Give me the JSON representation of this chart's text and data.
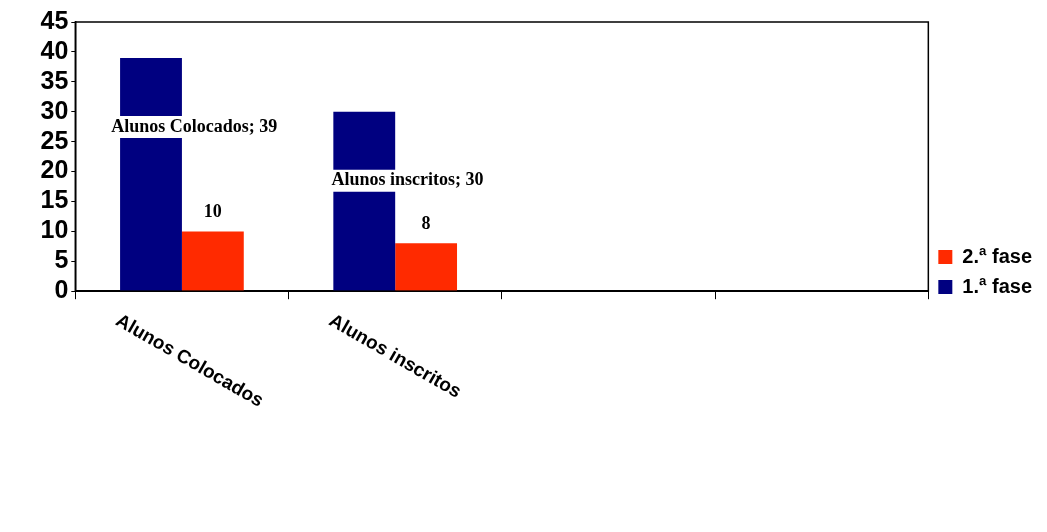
{
  "chart_data": {
    "type": "bar",
    "categories": [
      "Alunos Colocados",
      "Alunos inscritos",
      null,
      null
    ],
    "series": [
      {
        "name": "1.ª fase",
        "color": "#000080",
        "values": [
          39,
          30,
          null,
          null
        ],
        "value_labels": [
          "Alunos Colocados; 39",
          "Alunos inscritos; 30",
          null,
          null
        ]
      },
      {
        "name": "2.ª fase",
        "color": "#ff2a00",
        "values": [
          10,
          8,
          null,
          null
        ],
        "value_labels": [
          "10",
          "8",
          null,
          null
        ]
      }
    ],
    "ylim": [
      0,
      45
    ],
    "yticks": [
      0,
      5,
      10,
      15,
      20,
      25,
      30,
      35,
      40,
      45
    ],
    "grid": false,
    "legend": "right"
  }
}
